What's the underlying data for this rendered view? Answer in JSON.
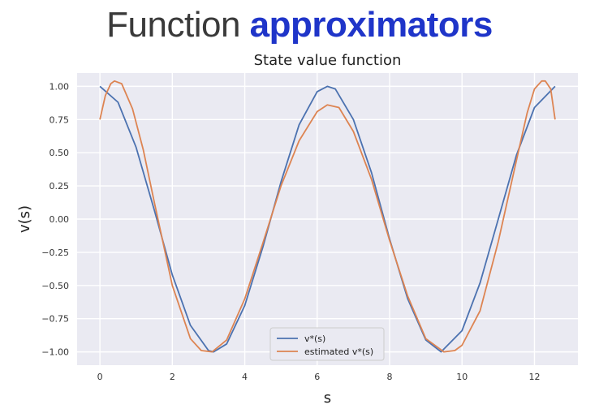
{
  "slide": {
    "title_part1": "Function",
    "title_part2": "approximators"
  },
  "chart_data": {
    "type": "line",
    "title": "State value function",
    "xlabel": "s",
    "ylabel": "v(s)",
    "xlim": [
      -0.63,
      13.2
    ],
    "ylim": [
      -1.1,
      1.1
    ],
    "xticks": [
      0,
      2,
      4,
      6,
      8,
      10,
      12
    ],
    "yticks": [
      1.0,
      0.75,
      0.5,
      0.25,
      0.0,
      -0.25,
      -0.5,
      -0.75,
      -1.0
    ],
    "yticklabels": [
      "1.00",
      "0.75",
      "0.50",
      "0.25",
      "0.00",
      "−0.25",
      "−0.50",
      "−0.75",
      "−1.00"
    ],
    "grid": true,
    "legend_position": "bottom-center",
    "series": [
      {
        "name": "v*(s)",
        "color": "#4c72b0",
        "x": [
          0,
          0.5,
          1.0,
          1.5,
          2.0,
          2.5,
          3.0,
          3.14,
          3.5,
          4.0,
          4.5,
          5.0,
          5.5,
          6.0,
          6.28,
          6.5,
          7.0,
          7.5,
          8.0,
          8.5,
          9.0,
          9.42,
          10.0,
          10.5,
          11.0,
          11.5,
          12.0,
          12.57
        ],
        "y": [
          1.0,
          0.88,
          0.54,
          0.07,
          -0.42,
          -0.8,
          -0.99,
          -1.0,
          -0.94,
          -0.65,
          -0.21,
          0.28,
          0.71,
          0.96,
          1.0,
          0.98,
          0.75,
          0.35,
          -0.15,
          -0.6,
          -0.91,
          -1.0,
          -0.84,
          -0.48,
          0.0,
          0.48,
          0.84,
          1.0
        ]
      },
      {
        "name": "estimated v*(s)",
        "color": "#dd8452",
        "x": [
          0,
          0.15,
          0.3,
          0.4,
          0.6,
          0.9,
          1.2,
          1.5,
          2.0,
          2.5,
          2.8,
          3.1,
          3.5,
          4.0,
          4.5,
          5.0,
          5.5,
          6.0,
          6.28,
          6.6,
          7.0,
          7.5,
          8.0,
          8.5,
          9.0,
          9.5,
          9.8,
          10.0,
          10.5,
          11.0,
          11.5,
          11.8,
          12.0,
          12.2,
          12.3,
          12.45,
          12.57
        ],
        "y": [
          0.75,
          0.93,
          1.02,
          1.04,
          1.02,
          0.83,
          0.52,
          0.13,
          -0.5,
          -0.9,
          -0.99,
          -1.0,
          -0.91,
          -0.6,
          -0.18,
          0.25,
          0.59,
          0.81,
          0.86,
          0.84,
          0.66,
          0.3,
          -0.16,
          -0.58,
          -0.9,
          -1.0,
          -0.99,
          -0.95,
          -0.69,
          -0.17,
          0.44,
          0.8,
          0.98,
          1.04,
          1.04,
          0.98,
          0.75
        ]
      }
    ]
  }
}
